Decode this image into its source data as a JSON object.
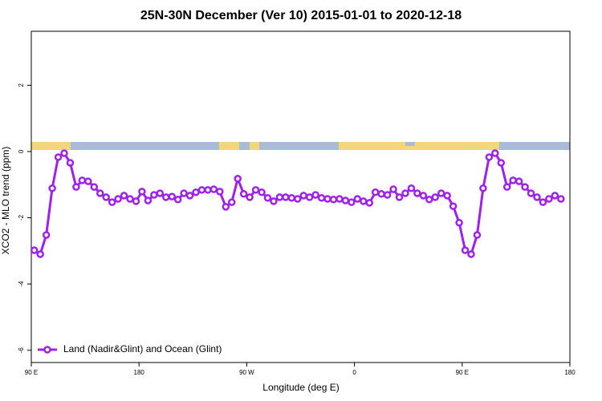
{
  "chart_data": {
    "type": "line",
    "title": "25N-30N December (Ver 10)   2015-01-01 to 2020-12-18",
    "x_label": "Longitude (deg E)",
    "y_label": "XCO2 - MLO trend (ppm)",
    "xlim": [
      90,
      540
    ],
    "xticks": [
      {
        "value": 90,
        "label": "90 E"
      },
      180,
      {
        "value": 270,
        "label": "90 W"
      },
      {
        "value": 360,
        "label": "0"
      },
      {
        "value": 450,
        "label": "90 E"
      },
      {
        "value": 540,
        "label": "180"
      }
    ],
    "ylim": [
      -6.37,
      3.63
    ],
    "yticks": [
      2,
      0,
      -2,
      -4,
      -6
    ],
    "legend": "bottomleft",
    "x": [
      92.5,
      97.5,
      102.5,
      107.5,
      112.5,
      117.5,
      122.5,
      127.5,
      132.5,
      137.5,
      142.5,
      147.5,
      152.5,
      157.5,
      162.5,
      167.5,
      172.5,
      177.5,
      182.5,
      187.5,
      192.5,
      197.5,
      202.5,
      207.5,
      212.5,
      217.5,
      222.5,
      227.5,
      232.5,
      237.5,
      242.5,
      247.5,
      252.5,
      257.5,
      262.5,
      267.5,
      272.5,
      277.5,
      282.5,
      287.5,
      292.5,
      297.5,
      302.5,
      307.5,
      312.5,
      317.5,
      322.5,
      327.5,
      332.5,
      337.5,
      342.5,
      347.5,
      352.5,
      357.5,
      362.5,
      367.5,
      372.5,
      377.5,
      382.5,
      387.5,
      392.5,
      397.5,
      402.5,
      407.5,
      412.5,
      417.5,
      422.5,
      427.5,
      432.5,
      437.5,
      442.5,
      447.5,
      452.5,
      457.5,
      462.5,
      467.5,
      472.5,
      477.5,
      482.5,
      487.5,
      492.5,
      497.5,
      502.5,
      507.5,
      512.5,
      517.5,
      522.5,
      527.5,
      532.5
    ],
    "series": [
      {
        "name": "Land (Nadir&Glint) and Ocean (Glint)",
        "color": "#a020f0",
        "values": [
          -2.98,
          -3.1,
          -2.52,
          -1.11,
          -0.17,
          -0.05,
          -0.34,
          -1.07,
          -0.87,
          -0.9,
          -1.07,
          -1.26,
          -1.38,
          -1.53,
          -1.43,
          -1.33,
          -1.43,
          -1.5,
          -1.21,
          -1.48,
          -1.31,
          -1.26,
          -1.38,
          -1.36,
          -1.45,
          -1.26,
          -1.33,
          -1.23,
          -1.16,
          -1.16,
          -1.14,
          -1.21,
          -1.67,
          -1.53,
          -0.82,
          -1.28,
          -1.38,
          -1.16,
          -1.23,
          -1.4,
          -1.5,
          -1.38,
          -1.38,
          -1.4,
          -1.43,
          -1.33,
          -1.38,
          -1.31,
          -1.4,
          -1.43,
          -1.45,
          -1.43,
          -1.48,
          -1.53,
          -1.43,
          -1.5,
          -1.55,
          -1.23,
          -1.28,
          -1.31,
          -1.14,
          -1.38,
          -1.26,
          -1.11,
          -1.26,
          -1.33,
          -1.45,
          -1.38,
          -1.26,
          -1.33,
          -1.65,
          -2.15,
          -2.98,
          -3.1,
          -2.52,
          -1.11,
          -0.17,
          -0.05,
          -0.34,
          -1.07,
          -0.87,
          -0.9,
          -1.07,
          -1.26,
          -1.38,
          -1.53,
          -1.43,
          -1.33,
          -1.43
        ]
      }
    ]
  }
}
